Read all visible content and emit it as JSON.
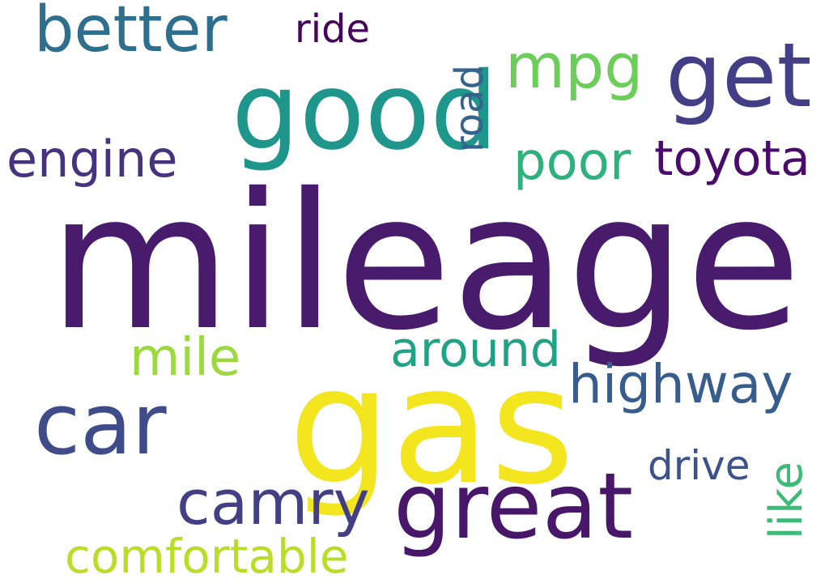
{
  "background": "#ffffff",
  "words": [
    {
      "id": "mileage",
      "text": "mileage",
      "color": "#481b6d"
    },
    {
      "id": "gas",
      "text": "gas",
      "color": "#f4e61e"
    },
    {
      "id": "good",
      "text": "good",
      "color": "#1f968b"
    },
    {
      "id": "great",
      "text": "great",
      "color": "#481769"
    },
    {
      "id": "car",
      "text": "car",
      "color": "#3e4c8a"
    },
    {
      "id": "get",
      "text": "get",
      "color": "#433e85"
    },
    {
      "id": "camry",
      "text": "camry",
      "color": "#423f85"
    },
    {
      "id": "better",
      "text": "better",
      "color": "#2e6f8e"
    },
    {
      "id": "highway",
      "text": "highway",
      "color": "#365d8d"
    },
    {
      "id": "mpg",
      "text": "mpg",
      "color": "#6ccd5a"
    },
    {
      "id": "comfortable",
      "text": "comfortable",
      "color": "#bade28"
    },
    {
      "id": "engine",
      "text": "engine",
      "color": "#46337f"
    },
    {
      "id": "poor",
      "text": "poor",
      "color": "#2db27d"
    },
    {
      "id": "toyota",
      "text": "toyota",
      "color": "#4a0c6b"
    },
    {
      "id": "mile",
      "text": "mile",
      "color": "#9bd93c"
    },
    {
      "id": "around",
      "text": "around",
      "color": "#22a285"
    },
    {
      "id": "ride",
      "text": "ride",
      "color": "#450559"
    },
    {
      "id": "drive",
      "text": "drive",
      "color": "#3b528b"
    },
    {
      "id": "road",
      "text": "road",
      "color": "#33638d"
    },
    {
      "id": "like",
      "text": "like",
      "color": "#3bbb75"
    }
  ]
}
